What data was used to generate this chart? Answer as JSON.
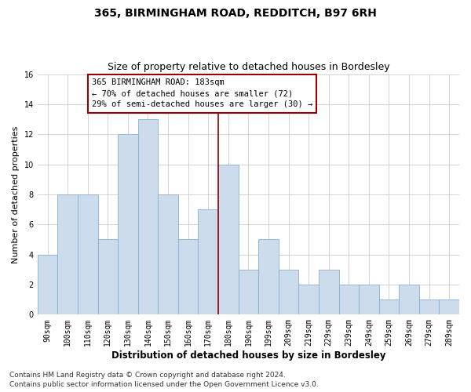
{
  "title": "365, BIRMINGHAM ROAD, REDDITCH, B97 6RH",
  "subtitle": "Size of property relative to detached houses in Bordesley",
  "xlabel": "Distribution of detached houses by size in Bordesley",
  "ylabel": "Number of detached properties",
  "categories": [
    "90sqm",
    "100sqm",
    "110sqm",
    "120sqm",
    "130sqm",
    "140sqm",
    "150sqm",
    "160sqm",
    "170sqm",
    "180sqm",
    "190sqm",
    "199sqm",
    "209sqm",
    "219sqm",
    "229sqm",
    "239sqm",
    "249sqm",
    "259sqm",
    "269sqm",
    "279sqm",
    "289sqm"
  ],
  "values": [
    4,
    8,
    8,
    5,
    12,
    13,
    8,
    5,
    7,
    10,
    3,
    5,
    3,
    2,
    3,
    2,
    2,
    1,
    2,
    1,
    1
  ],
  "bar_color": "#ccdcec",
  "bar_edgecolor": "#8ab0cc",
  "grid_color": "#cccccc",
  "vline_index": 9,
  "vline_color": "#990000",
  "annotation_text": "365 BIRMINGHAM ROAD: 183sqm\n← 70% of detached houses are smaller (72)\n29% of semi-detached houses are larger (30) →",
  "annotation_box_edgecolor": "#990000",
  "annotation_box_facecolor": "#ffffff",
  "ylim": [
    0,
    16
  ],
  "yticks": [
    0,
    2,
    4,
    6,
    8,
    10,
    12,
    14,
    16
  ],
  "footer_line1": "Contains HM Land Registry data © Crown copyright and database right 2024.",
  "footer_line2": "Contains public sector information licensed under the Open Government Licence v3.0.",
  "background_color": "#ffffff",
  "title_fontsize": 10,
  "subtitle_fontsize": 9,
  "tick_fontsize": 7,
  "ylabel_fontsize": 8,
  "xlabel_fontsize": 8.5,
  "annotation_fontsize": 7.5,
  "footer_fontsize": 6.5
}
